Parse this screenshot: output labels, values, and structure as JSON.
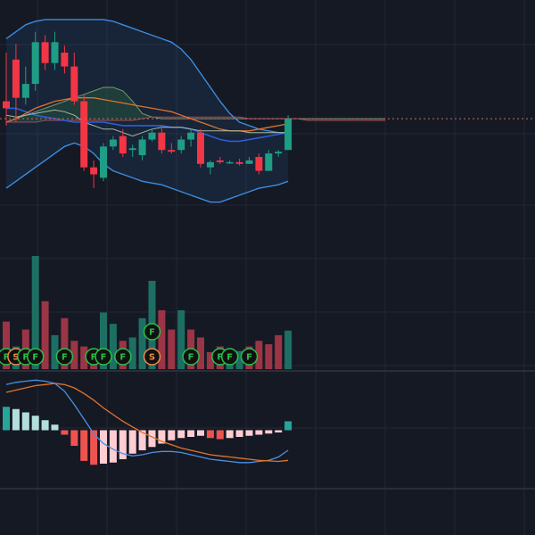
{
  "colors": {
    "background": "#151924",
    "grid": "#232735",
    "up": "#1f9e85",
    "down": "#f23645",
    "volume_up": "#1e6f63",
    "volume_down": "#9b3545",
    "bb_band": "#3a8de0",
    "bb_basis": "#2a5fd8",
    "ma_orange": "#e0742a",
    "cloud_green": "#2f5a3f",
    "cloud_red": "#4a2431",
    "lagging": "#a8b8a0",
    "signal_f": "#27c04a",
    "signal_s": "#f08a4b",
    "macd_line": "#4a90e2",
    "signal_line": "#e0742a",
    "hist_pos_strong": "#26a69a",
    "hist_pos_weak": "#b2dfdb",
    "hist_neg_strong": "#ef5350",
    "hist_neg_weak": "#ffcdd2"
  },
  "chart_data": [
    {
      "type": "candlestick",
      "panel": "price",
      "y_unit": "price",
      "ylim": [
        0,
        100
      ],
      "candles": [
        {
          "o": 52,
          "h": 80,
          "l": 38,
          "c": 48
        },
        {
          "o": 76,
          "h": 85,
          "l": 40,
          "c": 54
        },
        {
          "o": 54,
          "h": 72,
          "l": 50,
          "c": 62
        },
        {
          "o": 62,
          "h": 92,
          "l": 58,
          "c": 86
        },
        {
          "o": 86,
          "h": 90,
          "l": 70,
          "c": 74
        },
        {
          "o": 74,
          "h": 92,
          "l": 70,
          "c": 86
        },
        {
          "o": 80,
          "h": 84,
          "l": 68,
          "c": 72
        },
        {
          "o": 72,
          "h": 80,
          "l": 50,
          "c": 52
        },
        {
          "o": 52,
          "h": 56,
          "l": 12,
          "c": 14
        },
        {
          "o": 14,
          "h": 18,
          "l": 2,
          "c": 10
        },
        {
          "o": 8,
          "h": 28,
          "l": 6,
          "c": 26
        },
        {
          "o": 26,
          "h": 32,
          "l": 24,
          "c": 30
        },
        {
          "o": 32,
          "h": 36,
          "l": 20,
          "c": 22
        },
        {
          "o": 24,
          "h": 27,
          "l": 20,
          "c": 25
        },
        {
          "o": 21,
          "h": 32,
          "l": 18,
          "c": 30
        },
        {
          "o": 30,
          "h": 36,
          "l": 29,
          "c": 34
        },
        {
          "o": 34,
          "h": 38,
          "l": 22,
          "c": 24
        },
        {
          "o": 24,
          "h": 28,
          "l": 22,
          "c": 23
        },
        {
          "o": 24,
          "h": 32,
          "l": 22,
          "c": 30
        },
        {
          "o": 30,
          "h": 36,
          "l": 26,
          "c": 34
        },
        {
          "o": 34,
          "h": 36,
          "l": 14,
          "c": 16
        },
        {
          "o": 14,
          "h": 18,
          "l": 10,
          "c": 17
        },
        {
          "o": 18,
          "h": 20,
          "l": 16,
          "c": 17
        },
        {
          "o": 17,
          "h": 18,
          "l": 16,
          "c": 17
        },
        {
          "o": 17,
          "h": 19,
          "l": 15,
          "c": 16
        },
        {
          "o": 16,
          "h": 20,
          "l": 16,
          "c": 18
        },
        {
          "o": 20,
          "h": 22,
          "l": 10,
          "c": 12
        },
        {
          "o": 12,
          "h": 24,
          "l": 12,
          "c": 22
        },
        {
          "o": 22,
          "h": 24,
          "l": 20,
          "c": 23
        },
        {
          "o": 24,
          "h": 44,
          "l": 24,
          "c": 42
        }
      ],
      "bollinger": {
        "upper": [
          88,
          92,
          96,
          98,
          99,
          99,
          99,
          99,
          99,
          99,
          99,
          98,
          96,
          94,
          92,
          90,
          88,
          86,
          82,
          76,
          68,
          60,
          52,
          45,
          40,
          38,
          36,
          35,
          34,
          34
        ],
        "middle": [
          42,
          42,
          42,
          42,
          42,
          42,
          42,
          42,
          41,
          40,
          38,
          36,
          34,
          33,
          32,
          32,
          31,
          31,
          30,
          30,
          29,
          29,
          28,
          28,
          28,
          28,
          28,
          28,
          28,
          28
        ],
        "lower": [
          2,
          6,
          10,
          14,
          18,
          22,
          26,
          28,
          26,
          22,
          16,
          12,
          10,
          8,
          6,
          5,
          4,
          2,
          0,
          -2,
          -4,
          -6,
          -6,
          -4,
          -2,
          0,
          2,
          3,
          4,
          6
        ],
        "basis_blue": [
          48,
          48,
          46,
          44,
          43,
          42,
          41,
          40,
          40,
          40,
          40,
          39,
          38,
          38,
          38,
          38,
          38,
          37,
          37,
          36,
          34,
          32,
          30,
          29,
          29,
          30,
          31,
          32,
          33,
          34
        ]
      },
      "ma_orange": [
        40,
        42,
        45,
        48,
        50,
        52,
        53,
        54,
        54,
        54,
        53,
        52,
        51,
        50,
        49,
        48,
        47,
        46,
        44,
        42,
        40,
        38,
        36,
        35,
        35,
        35,
        36,
        37,
        38,
        39
      ],
      "cloud_span_a": [
        40,
        42,
        44,
        46,
        48,
        50,
        52,
        54,
        56,
        58,
        60,
        60,
        58,
        52,
        45,
        43,
        42,
        42,
        42,
        42,
        42,
        42,
        42,
        42,
        42,
        42,
        42,
        42,
        42,
        42,
        42,
        42,
        42,
        42,
        42,
        42,
        42,
        42,
        42,
        42
      ],
      "cloud_span_b": [
        40,
        40,
        40,
        40,
        41,
        41,
        41,
        41,
        41,
        41,
        41,
        41,
        41,
        41,
        42,
        43,
        43,
        43,
        43,
        43,
        43,
        43,
        43,
        43,
        43,
        42,
        42,
        42,
        42,
        42,
        42,
        41,
        41,
        41,
        41,
        41,
        41,
        41,
        41,
        41
      ],
      "lagging_span": [
        44,
        43,
        44,
        45,
        46,
        47,
        46,
        44,
        40,
        38,
        36,
        36,
        34,
        32,
        34,
        36,
        37,
        37,
        37,
        36,
        35,
        35,
        35,
        35,
        35,
        34,
        34,
        34,
        34,
        34
      ]
    },
    {
      "type": "bar",
      "panel": "volume",
      "ylim": [
        0,
        100
      ],
      "values": [
        42,
        20,
        35,
        100,
        60,
        30,
        45,
        25,
        20,
        12,
        50,
        40,
        25,
        28,
        45,
        78,
        52,
        35,
        52,
        35,
        28,
        15,
        20,
        14,
        16,
        20,
        25,
        22,
        30,
        34
      ],
      "direction": [
        "d",
        "u",
        "d",
        "u",
        "d",
        "u",
        "d",
        "d",
        "d",
        "d",
        "u",
        "u",
        "d",
        "u",
        "u",
        "u",
        "d",
        "d",
        "u",
        "d",
        "d",
        "d",
        "d",
        "u",
        "u",
        "d",
        "d",
        "d",
        "d",
        "u"
      ],
      "signals": [
        {
          "index": 0,
          "label": "F",
          "kind": "f"
        },
        {
          "index": 1,
          "label": "S",
          "kind": "s"
        },
        {
          "index": 2,
          "label": "F",
          "kind": "f"
        },
        {
          "index": 3,
          "label": "F",
          "kind": "f"
        },
        {
          "index": 6,
          "label": "F",
          "kind": "f"
        },
        {
          "index": 9,
          "label": "F",
          "kind": "f"
        },
        {
          "index": 10,
          "label": "F",
          "kind": "f"
        },
        {
          "index": 12,
          "label": "F",
          "kind": "f"
        },
        {
          "index": 15,
          "label": "S",
          "kind": "s"
        },
        {
          "index": 15,
          "label": "F",
          "kind": "f",
          "row": 1
        },
        {
          "index": 19,
          "label": "F",
          "kind": "f"
        },
        {
          "index": 22,
          "label": "F",
          "kind": "f"
        },
        {
          "index": 23,
          "label": "F",
          "kind": "f"
        },
        {
          "index": 25,
          "label": "F",
          "kind": "f"
        }
      ]
    },
    {
      "type": "macd",
      "panel": "oscillator",
      "ylim": [
        -100,
        100
      ],
      "histogram": [
        42,
        38,
        32,
        26,
        18,
        10,
        -8,
        -28,
        -55,
        -62,
        -60,
        -58,
        -52,
        -42,
        -36,
        -30,
        -24,
        -18,
        -14,
        -12,
        -10,
        -14,
        -16,
        -14,
        -12,
        -10,
        -8,
        -6,
        -4,
        16
      ],
      "macd_line": [
        82,
        86,
        88,
        90,
        88,
        84,
        70,
        46,
        20,
        -6,
        -24,
        -34,
        -42,
        -46,
        -44,
        -40,
        -38,
        -38,
        -40,
        -44,
        -48,
        -52,
        -54,
        -56,
        -58,
        -58,
        -56,
        -54,
        -48,
        -36
      ],
      "signal_line": [
        68,
        72,
        76,
        80,
        82,
        84,
        82,
        76,
        66,
        54,
        40,
        28,
        16,
        6,
        -4,
        -12,
        -20,
        -26,
        -32,
        -36,
        -40,
        -44,
        -46,
        -48,
        -50,
        -52,
        -54,
        -55,
        -56,
        -54
      ]
    }
  ]
}
